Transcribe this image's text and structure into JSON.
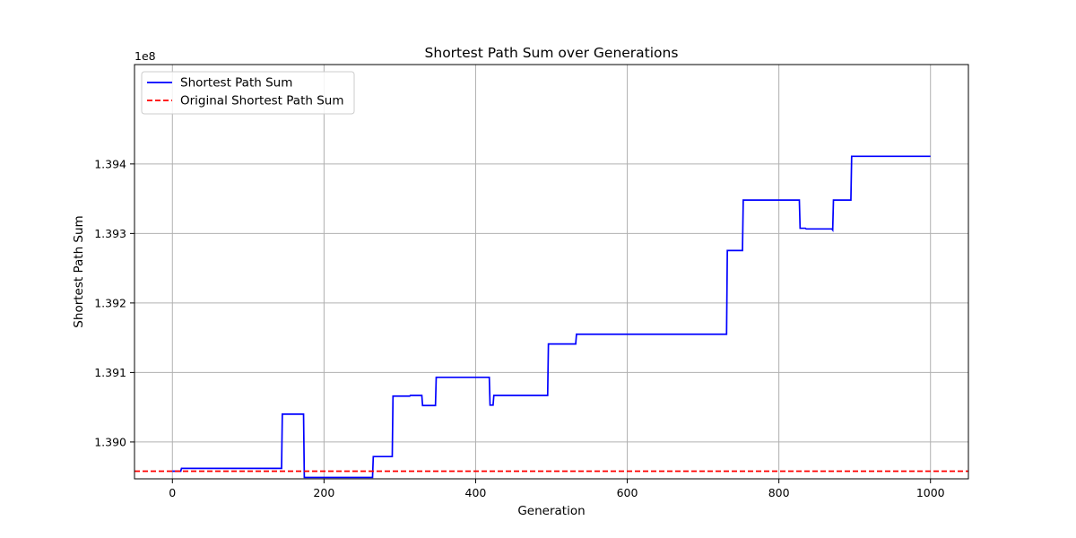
{
  "chart_data": {
    "type": "line",
    "title": "Shortest Path Sum over Generations",
    "xlabel": "Generation",
    "ylabel": "Shortest Path Sum",
    "y_offset_label": "1e8",
    "xlim": [
      -50,
      1050
    ],
    "ylim": [
      138947000,
      139543000
    ],
    "x_ticks": [
      0,
      200,
      400,
      600,
      800,
      1000
    ],
    "x_tick_labels": [
      "0",
      "200",
      "400",
      "600",
      "800",
      "1000"
    ],
    "y_ticks": [
      139000000,
      139100000,
      139200000,
      139300000,
      139400000
    ],
    "y_tick_labels": [
      "1.390",
      "1.391",
      "1.392",
      "1.393",
      "1.394"
    ],
    "grid": true,
    "legend_position": "upper-left",
    "series": [
      {
        "name": "Shortest Path Sum",
        "color": "#0000ff",
        "style": "solid",
        "points": [
          [
            0,
            138958000
          ],
          [
            11,
            138958000
          ],
          [
            12,
            138962000
          ],
          [
            144,
            138962000
          ],
          [
            145,
            139040000
          ],
          [
            173,
            139040000
          ],
          [
            174,
            138949000
          ],
          [
            264,
            138949000
          ],
          [
            265,
            138979000
          ],
          [
            290,
            138979000
          ],
          [
            291,
            139066000
          ],
          [
            313,
            139066000
          ],
          [
            314,
            139067000
          ],
          [
            329,
            139067000
          ],
          [
            330,
            139052500
          ],
          [
            347,
            139052500
          ],
          [
            348,
            139093000
          ],
          [
            418,
            139093000
          ],
          [
            419,
            139053000
          ],
          [
            423,
            139053000
          ],
          [
            424,
            139067000
          ],
          [
            495,
            139067000
          ],
          [
            496,
            139141000
          ],
          [
            532,
            139141000
          ],
          [
            533,
            139155000
          ],
          [
            731,
            139155000
          ],
          [
            732,
            139275500
          ],
          [
            752,
            139275500
          ],
          [
            753,
            139348000
          ],
          [
            827,
            139348000
          ],
          [
            828,
            139307500
          ],
          [
            835,
            139307500
          ],
          [
            836,
            139306500
          ],
          [
            870,
            139306500
          ],
          [
            871,
            139305000
          ],
          [
            872,
            139348000
          ],
          [
            895,
            139348000
          ],
          [
            896,
            139411000
          ],
          [
            1000,
            139411000
          ]
        ]
      },
      {
        "name": "Original Shortest Path Sum",
        "color": "#ff0000",
        "style": "dashed",
        "hline": 138958000
      }
    ]
  }
}
